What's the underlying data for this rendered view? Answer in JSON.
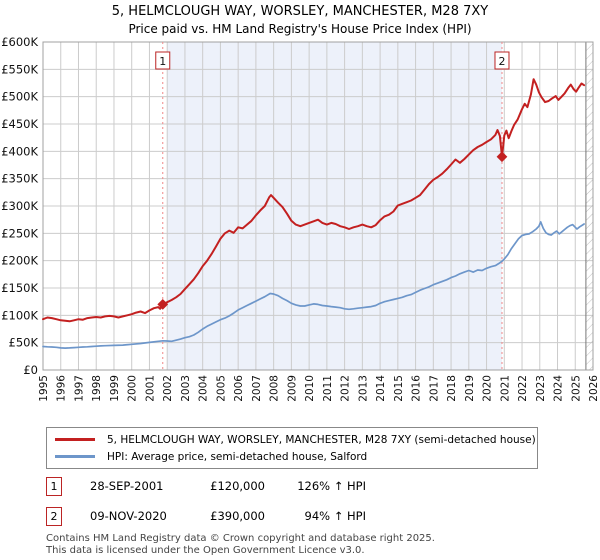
{
  "title": "5, HELMCLOUGH WAY, WORSLEY, MANCHESTER, M28 7XY",
  "subtitle": "Price paid vs. HM Land Registry's House Price Index (HPI)",
  "chart_data": {
    "type": "line",
    "title": "5, HELMCLOUGH WAY, WORSLEY, MANCHESTER, M28 7XY",
    "subtitle": "Price paid vs. HM Land Registry's House Price Index (HPI)",
    "unit": "GBP thousands",
    "grid": true,
    "legend_position": "bottom",
    "x_axis": {
      "range": [
        1995,
        2026
      ],
      "ticks": [
        1995,
        1996,
        1997,
        1998,
        1999,
        2000,
        2001,
        2002,
        2003,
        2004,
        2005,
        2006,
        2007,
        2008,
        2009,
        2010,
        2011,
        2012,
        2013,
        2014,
        2015,
        2016,
        2017,
        2018,
        2019,
        2020,
        2021,
        2022,
        2023,
        2024,
        2025,
        2026
      ]
    },
    "y_axis": {
      "max_k": 600,
      "tick_step_k": 50,
      "tick_labels": [
        "£0",
        "£50K",
        "£100K",
        "£150K",
        "£200K",
        "£250K",
        "£300K",
        "£350K",
        "£400K",
        "£450K",
        "£500K",
        "£550K",
        "£600K"
      ]
    },
    "colors": {
      "property": "#c32020",
      "hpi": "#6d96ca",
      "shade": "#edf1fa",
      "grid": "#cccccc",
      "border": "#a0a0a0",
      "dashed": "#f08888",
      "marker_box_border": "#bb2424",
      "hatch": "#bfbfbf",
      "hatch_edge": "#777777"
    },
    "shaded_region": {
      "from_x": 2002.0,
      "to_x": 2020.87
    },
    "hatch_region": {
      "from_x": 2025.6,
      "to_x": 2026.0
    },
    "sale_markers": [
      {
        "label": "1",
        "x": 2001.75,
        "value_k": 120,
        "date": "28-SEP-2001",
        "price": "£120,000",
        "vs_hpi": "126% ↑ HPI"
      },
      {
        "label": "2",
        "x": 2020.87,
        "value_k": 390,
        "date": "09-NOV-2020",
        "price": "£390,000",
        "vs_hpi": "94% ↑ HPI"
      }
    ],
    "series": [
      {
        "name": "5, HELMCLOUGH WAY, WORSLEY, MANCHESTER, M28 7XY (semi-detached house)",
        "color": "#c32020",
        "points": [
          [
            1995.0,
            93
          ],
          [
            1995.25,
            96
          ],
          [
            1995.5,
            95
          ],
          [
            1995.75,
            93
          ],
          [
            1996.0,
            91
          ],
          [
            1996.25,
            90
          ],
          [
            1996.5,
            89
          ],
          [
            1996.75,
            91
          ],
          [
            1997.0,
            93
          ],
          [
            1997.25,
            92
          ],
          [
            1997.5,
            95
          ],
          [
            1997.75,
            96
          ],
          [
            1998.0,
            97
          ],
          [
            1998.25,
            96
          ],
          [
            1998.5,
            98
          ],
          [
            1998.75,
            99
          ],
          [
            1999.0,
            98
          ],
          [
            1999.25,
            96
          ],
          [
            1999.5,
            98
          ],
          [
            1999.75,
            100
          ],
          [
            2000.0,
            102
          ],
          [
            2000.25,
            105
          ],
          [
            2000.5,
            107
          ],
          [
            2000.75,
            104
          ],
          [
            2001.0,
            109
          ],
          [
            2001.25,
            113
          ],
          [
            2001.5,
            115
          ],
          [
            2001.6,
            112
          ],
          [
            2001.75,
            120
          ],
          [
            2002.0,
            124
          ],
          [
            2002.25,
            128
          ],
          [
            2002.5,
            133
          ],
          [
            2002.75,
            139
          ],
          [
            2003.0,
            148
          ],
          [
            2003.25,
            157
          ],
          [
            2003.5,
            166
          ],
          [
            2003.75,
            177
          ],
          [
            2004.0,
            190
          ],
          [
            2004.25,
            200
          ],
          [
            2004.5,
            212
          ],
          [
            2004.75,
            226
          ],
          [
            2005.0,
            240
          ],
          [
            2005.25,
            250
          ],
          [
            2005.5,
            255
          ],
          [
            2005.75,
            251
          ],
          [
            2006.0,
            261
          ],
          [
            2006.25,
            259
          ],
          [
            2006.5,
            266
          ],
          [
            2006.75,
            273
          ],
          [
            2007.0,
            283
          ],
          [
            2007.25,
            292
          ],
          [
            2007.5,
            300
          ],
          [
            2007.75,
            316
          ],
          [
            2007.85,
            320
          ],
          [
            2008.0,
            315
          ],
          [
            2008.25,
            306
          ],
          [
            2008.5,
            298
          ],
          [
            2008.75,
            286
          ],
          [
            2009.0,
            273
          ],
          [
            2009.25,
            266
          ],
          [
            2009.5,
            263
          ],
          [
            2009.75,
            266
          ],
          [
            2010.0,
            269
          ],
          [
            2010.25,
            272
          ],
          [
            2010.5,
            275
          ],
          [
            2010.75,
            269
          ],
          [
            2011.0,
            266
          ],
          [
            2011.25,
            269
          ],
          [
            2011.5,
            267
          ],
          [
            2011.75,
            263
          ],
          [
            2012.0,
            261
          ],
          [
            2012.25,
            258
          ],
          [
            2012.5,
            261
          ],
          [
            2012.75,
            263
          ],
          [
            2013.0,
            266
          ],
          [
            2013.25,
            263
          ],
          [
            2013.5,
            261
          ],
          [
            2013.75,
            265
          ],
          [
            2014.0,
            274
          ],
          [
            2014.25,
            281
          ],
          [
            2014.5,
            284
          ],
          [
            2014.75,
            290
          ],
          [
            2015.0,
            301
          ],
          [
            2015.25,
            304
          ],
          [
            2015.5,
            307
          ],
          [
            2015.75,
            310
          ],
          [
            2016.0,
            315
          ],
          [
            2016.25,
            320
          ],
          [
            2016.5,
            330
          ],
          [
            2016.75,
            340
          ],
          [
            2017.0,
            348
          ],
          [
            2017.25,
            353
          ],
          [
            2017.5,
            359
          ],
          [
            2017.75,
            367
          ],
          [
            2018.0,
            376
          ],
          [
            2018.25,
            385
          ],
          [
            2018.5,
            379
          ],
          [
            2018.75,
            386
          ],
          [
            2019.0,
            394
          ],
          [
            2019.25,
            402
          ],
          [
            2019.5,
            408
          ],
          [
            2019.75,
            412
          ],
          [
            2020.0,
            417
          ],
          [
            2020.25,
            422
          ],
          [
            2020.5,
            430
          ],
          [
            2020.62,
            439
          ],
          [
            2020.75,
            428
          ],
          [
            2020.87,
            390
          ],
          [
            2021.0,
            429
          ],
          [
            2021.12,
            438
          ],
          [
            2021.25,
            424
          ],
          [
            2021.4,
            437
          ],
          [
            2021.55,
            448
          ],
          [
            2021.75,
            458
          ],
          [
            2022.0,
            477
          ],
          [
            2022.15,
            487
          ],
          [
            2022.3,
            481
          ],
          [
            2022.5,
            504
          ],
          [
            2022.65,
            532
          ],
          [
            2022.8,
            522
          ],
          [
            2022.95,
            508
          ],
          [
            2023.1,
            499
          ],
          [
            2023.3,
            490
          ],
          [
            2023.5,
            492
          ],
          [
            2023.7,
            497
          ],
          [
            2023.9,
            501
          ],
          [
            2024.05,
            494
          ],
          [
            2024.2,
            499
          ],
          [
            2024.4,
            506
          ],
          [
            2024.6,
            516
          ],
          [
            2024.75,
            522
          ],
          [
            2024.9,
            514
          ],
          [
            2025.05,
            509
          ],
          [
            2025.2,
            517
          ],
          [
            2025.35,
            524
          ],
          [
            2025.5,
            521
          ]
        ]
      },
      {
        "name": "HPI: Average price, semi-detached house, Salford",
        "color": "#6d96ca",
        "points": [
          [
            1995.0,
            43
          ],
          [
            1995.25,
            42.5
          ],
          [
            1995.5,
            42
          ],
          [
            1995.75,
            41.5
          ],
          [
            1996.0,
            40.5
          ],
          [
            1996.25,
            40
          ],
          [
            1996.5,
            40.5
          ],
          [
            1996.75,
            41
          ],
          [
            1997.0,
            41.5
          ],
          [
            1997.25,
            42
          ],
          [
            1997.5,
            42.5
          ],
          [
            1997.75,
            43
          ],
          [
            1998.0,
            43.5
          ],
          [
            1998.25,
            44
          ],
          [
            1998.5,
            44.5
          ],
          [
            1999.0,
            45
          ],
          [
            1999.5,
            45.5
          ],
          [
            2000.0,
            47
          ],
          [
            2000.5,
            48.5
          ],
          [
            2001.0,
            50.5
          ],
          [
            2001.5,
            52.5
          ],
          [
            2001.75,
            53.5
          ],
          [
            2002.0,
            53
          ],
          [
            2002.25,
            52.5
          ],
          [
            2002.5,
            54.5
          ],
          [
            2002.75,
            56.5
          ],
          [
            2003.0,
            59
          ],
          [
            2003.25,
            61
          ],
          [
            2003.5,
            64
          ],
          [
            2003.75,
            69
          ],
          [
            2004.0,
            75
          ],
          [
            2004.25,
            80
          ],
          [
            2004.5,
            84
          ],
          [
            2004.75,
            88
          ],
          [
            2005.0,
            92
          ],
          [
            2005.25,
            95
          ],
          [
            2005.5,
            99
          ],
          [
            2005.75,
            104
          ],
          [
            2006.0,
            110
          ],
          [
            2006.25,
            114
          ],
          [
            2006.5,
            118
          ],
          [
            2006.75,
            122
          ],
          [
            2007.0,
            126
          ],
          [
            2007.25,
            130
          ],
          [
            2007.5,
            134
          ],
          [
            2007.8,
            140
          ],
          [
            2008.0,
            139
          ],
          [
            2008.25,
            136
          ],
          [
            2008.5,
            131
          ],
          [
            2008.75,
            127
          ],
          [
            2009.0,
            122
          ],
          [
            2009.25,
            119
          ],
          [
            2009.5,
            117
          ],
          [
            2009.75,
            117
          ],
          [
            2010.0,
            119
          ],
          [
            2010.25,
            121
          ],
          [
            2010.5,
            120
          ],
          [
            2010.75,
            118
          ],
          [
            2011.0,
            117
          ],
          [
            2011.25,
            116
          ],
          [
            2011.5,
            115
          ],
          [
            2011.75,
            114
          ],
          [
            2012.0,
            112
          ],
          [
            2012.25,
            111
          ],
          [
            2012.5,
            112
          ],
          [
            2012.75,
            113
          ],
          [
            2013.0,
            114
          ],
          [
            2013.25,
            115
          ],
          [
            2013.5,
            116
          ],
          [
            2013.75,
            118
          ],
          [
            2014.0,
            122
          ],
          [
            2014.25,
            125
          ],
          [
            2014.5,
            127
          ],
          [
            2014.75,
            129
          ],
          [
            2015.0,
            131
          ],
          [
            2015.25,
            133
          ],
          [
            2015.5,
            136
          ],
          [
            2015.75,
            138
          ],
          [
            2016.0,
            142
          ],
          [
            2016.25,
            146
          ],
          [
            2016.5,
            149
          ],
          [
            2016.75,
            152
          ],
          [
            2017.0,
            156
          ],
          [
            2017.25,
            159
          ],
          [
            2017.5,
            162
          ],
          [
            2017.75,
            165
          ],
          [
            2018.0,
            169
          ],
          [
            2018.25,
            172
          ],
          [
            2018.5,
            176
          ],
          [
            2018.75,
            179
          ],
          [
            2019.0,
            182
          ],
          [
            2019.25,
            179
          ],
          [
            2019.5,
            183
          ],
          [
            2019.75,
            182
          ],
          [
            2020.0,
            186
          ],
          [
            2020.25,
            189
          ],
          [
            2020.5,
            191
          ],
          [
            2020.7,
            195
          ],
          [
            2020.87,
            199
          ],
          [
            2021.0,
            203
          ],
          [
            2021.2,
            211
          ],
          [
            2021.4,
            222
          ],
          [
            2021.6,
            231
          ],
          [
            2021.8,
            240
          ],
          [
            2022.0,
            246
          ],
          [
            2022.2,
            248
          ],
          [
            2022.4,
            249
          ],
          [
            2022.6,
            253
          ],
          [
            2022.8,
            258
          ],
          [
            2022.95,
            263
          ],
          [
            2023.05,
            271
          ],
          [
            2023.2,
            259
          ],
          [
            2023.35,
            251
          ],
          [
            2023.5,
            248
          ],
          [
            2023.65,
            247
          ],
          [
            2023.8,
            251
          ],
          [
            2023.95,
            254
          ],
          [
            2024.1,
            249
          ],
          [
            2024.25,
            253
          ],
          [
            2024.4,
            257
          ],
          [
            2024.55,
            261
          ],
          [
            2024.7,
            264
          ],
          [
            2024.85,
            266
          ],
          [
            2025.0,
            261
          ],
          [
            2025.1,
            258
          ],
          [
            2025.25,
            262
          ],
          [
            2025.4,
            265
          ],
          [
            2025.5,
            267
          ]
        ]
      }
    ]
  },
  "legend": {
    "items": [
      {
        "label": "5, HELMCLOUGH WAY, WORSLEY, MANCHESTER, M28 7XY (semi-detached house)"
      },
      {
        "label": "HPI: Average price, semi-detached house, Salford"
      }
    ]
  },
  "transactions": [
    {
      "num": "1",
      "date": "28-SEP-2001",
      "price": "£120,000",
      "hpi": "126% ↑ HPI"
    },
    {
      "num": "2",
      "date": "09-NOV-2020",
      "price": "£390,000",
      "hpi": "94% ↑ HPI"
    }
  ],
  "footer": {
    "line1": "Contains HM Land Registry data © Crown copyright and database right 2025.",
    "line2": "This data is licensed under the Open Government Licence v3.0."
  }
}
